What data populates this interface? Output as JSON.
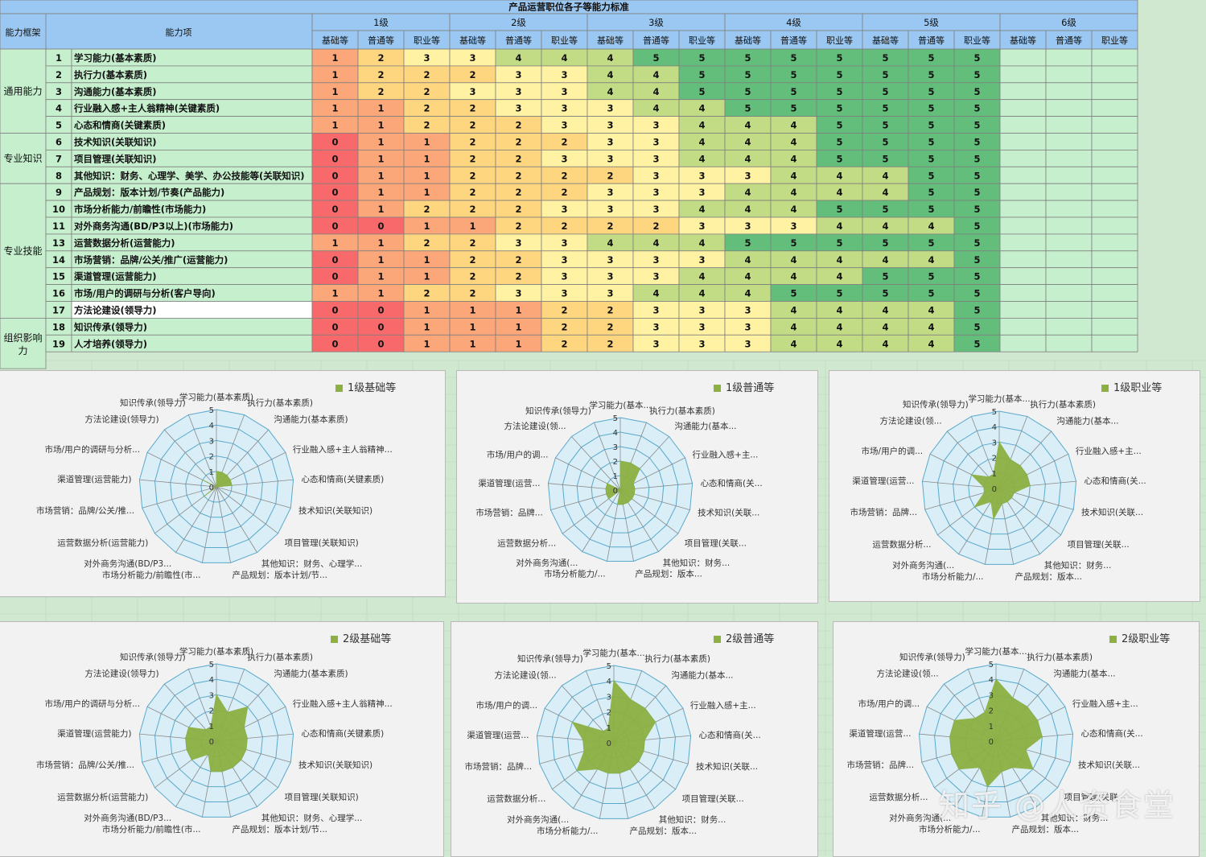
{
  "table": {
    "title": "产品运营职位各子等能力标准",
    "header_framework": "能力框架",
    "header_item": "能力项",
    "levels": [
      "1级",
      "2级",
      "3级",
      "4级",
      "5级",
      "6级"
    ],
    "sub_levels": [
      "基础等",
      "普通等",
      "职业等"
    ],
    "groups": [
      {
        "name": "通用能力",
        "rows": 5
      },
      {
        "name": "专业知识",
        "rows": 3
      },
      {
        "name": "专业技能",
        "rows": 8
      },
      {
        "name": "组织影响力",
        "rows": 3
      }
    ],
    "rows": [
      {
        "no": "1",
        "item": "学习能力(基本素质)",
        "values": [
          1,
          2,
          3,
          3,
          4,
          4,
          4,
          5,
          5,
          5,
          5,
          5,
          5,
          5,
          5
        ]
      },
      {
        "no": "2",
        "item": "执行力(基本素质)",
        "values": [
          1,
          2,
          2,
          2,
          3,
          3,
          4,
          4,
          5,
          5,
          5,
          5,
          5,
          5,
          5
        ]
      },
      {
        "no": "3",
        "item": "沟通能力(基本素质)",
        "values": [
          1,
          2,
          2,
          3,
          3,
          3,
          4,
          4,
          5,
          5,
          5,
          5,
          5,
          5,
          5
        ]
      },
      {
        "no": "4",
        "item": "行业融入感+主人翁精神(关键素质)",
        "values": [
          1,
          1,
          2,
          2,
          3,
          3,
          3,
          4,
          4,
          5,
          5,
          5,
          5,
          5,
          5
        ]
      },
      {
        "no": "5",
        "item": "心态和情商(关键素质)",
        "values": [
          1,
          1,
          2,
          2,
          2,
          3,
          3,
          3,
          4,
          4,
          4,
          5,
          5,
          5,
          5
        ]
      },
      {
        "no": "6",
        "item": "技术知识(关联知识)",
        "values": [
          0,
          1,
          1,
          2,
          2,
          2,
          3,
          3,
          4,
          4,
          4,
          5,
          5,
          5,
          5
        ]
      },
      {
        "no": "7",
        "item": "项目管理(关联知识)",
        "values": [
          0,
          1,
          1,
          2,
          2,
          3,
          3,
          3,
          4,
          4,
          4,
          5,
          5,
          5,
          5
        ]
      },
      {
        "no": "8",
        "item": "其他知识：财务、心理学、美学、办公技能等(关联知识)",
        "values": [
          0,
          1,
          1,
          2,
          2,
          2,
          2,
          3,
          3,
          3,
          4,
          4,
          4,
          5,
          5
        ]
      },
      {
        "no": "9",
        "item": "产品规划：版本计划/节奏(产品能力)",
        "values": [
          0,
          1,
          1,
          2,
          2,
          2,
          3,
          3,
          3,
          4,
          4,
          4,
          4,
          5,
          5
        ]
      },
      {
        "no": "10",
        "item": "市场分析能力/前瞻性(市场能力)",
        "values": [
          0,
          1,
          2,
          2,
          2,
          3,
          3,
          3,
          4,
          4,
          4,
          5,
          5,
          5,
          5
        ]
      },
      {
        "no": "11",
        "item": "对外商务沟通(BD/P3以上)(市场能力)",
        "values": [
          0,
          0,
          1,
          1,
          2,
          2,
          2,
          2,
          3,
          3,
          3,
          4,
          4,
          4,
          5
        ]
      },
      {
        "no": "13",
        "item": "运营数据分析(运营能力)",
        "values": [
          1,
          1,
          2,
          2,
          3,
          3,
          4,
          4,
          4,
          5,
          5,
          5,
          5,
          5,
          5
        ]
      },
      {
        "no": "14",
        "item": "市场营销：品牌/公关/推广(运营能力)",
        "values": [
          0,
          1,
          1,
          2,
          2,
          3,
          3,
          3,
          3,
          4,
          4,
          4,
          4,
          4,
          5
        ]
      },
      {
        "no": "15",
        "item": "渠道管理(运营能力)",
        "values": [
          0,
          1,
          1,
          2,
          2,
          3,
          3,
          3,
          4,
          4,
          4,
          4,
          5,
          5,
          5
        ]
      },
      {
        "no": "16",
        "item": "市场/用户的调研与分析(客户导向)",
        "values": [
          1,
          1,
          2,
          2,
          3,
          3,
          3,
          4,
          4,
          4,
          5,
          5,
          5,
          5,
          5
        ]
      },
      {
        "no": "17",
        "item": "方法论建设(领导力)",
        "values": [
          0,
          0,
          1,
          1,
          1,
          2,
          2,
          3,
          3,
          3,
          4,
          4,
          4,
          4,
          5
        ]
      },
      {
        "no": "18",
        "item": "知识传承(领导力)",
        "values": [
          0,
          0,
          1,
          1,
          1,
          2,
          2,
          3,
          3,
          3,
          4,
          4,
          4,
          4,
          5
        ]
      },
      {
        "no": "19",
        "item": "人才培养(领导力)",
        "values": [
          0,
          0,
          1,
          1,
          1,
          2,
          2,
          3,
          3,
          3,
          4,
          4,
          4,
          4,
          5
        ]
      }
    ]
  },
  "colors": {
    "header_blue": "#9bc8f2",
    "row_green": "#c6efce",
    "page_green": "#cfe8cf",
    "heat": [
      "#f8696b",
      "#fba77a",
      "#fed680",
      "#fff2a3",
      "#c2dc85",
      "#63be7b"
    ],
    "radar_fill": "#8db043",
    "radar_plot_bg": "#d9eef7",
    "radar_grid": "#5aa9cc"
  },
  "radar_labels_full": [
    "学习能力(基本素质)",
    "执行力(基本素质)",
    "沟通能力(基本素质)",
    "行业融入感+主人翁精神...",
    "心态和情商(关键素质)",
    "技术知识(关联知识)",
    "项目管理(关联知识)",
    "其他知识：财务、心理学...",
    "产品规划：版本计划/节...",
    "市场分析能力/前瞻性(市...",
    "对外商务沟通(BD/P3...",
    "运营数据分析(运营能力)",
    "市场营销：品牌/公关/推...",
    "渠道管理(运营能力)",
    "市场/用户的调研与分析...",
    "方法论建设(领导力)",
    "知识传承(领导力)"
  ],
  "radar_labels_short": [
    "学习能力(基本...",
    "执行力(基本素质)",
    "沟通能力(基本...",
    "行业融入感+主...",
    "心态和情商(关...",
    "技术知识(关联...",
    "项目管理(关联...",
    "其他知识：财务...",
    "产品规划：版本...",
    "市场分析能力/...",
    "对外商务沟通(...",
    "运营数据分析...",
    "市场营销：品牌...",
    "渠道管理(运营...",
    "市场/用户的调...",
    "方法论建设(领...",
    "知识传承(领导力)"
  ],
  "radar_ticks": [
    "0",
    "1",
    "2",
    "3",
    "4",
    "5"
  ],
  "watermark": "知乎 @人资食堂",
  "chart_data": [
    {
      "type": "radar",
      "title": "",
      "series": [
        {
          "name": "1级基础等",
          "values": [
            1,
            1,
            1,
            1,
            1,
            0,
            0,
            0,
            0,
            0,
            0,
            1,
            0,
            0,
            1,
            0,
            0
          ]
        }
      ],
      "rlim": [
        0,
        5
      ]
    },
    {
      "type": "radar",
      "title": "",
      "series": [
        {
          "name": "1级普通等",
          "values": [
            2,
            2,
            2,
            1,
            1,
            1,
            1,
            1,
            1,
            1,
            0,
            1,
            1,
            1,
            1,
            0,
            0
          ]
        }
      ],
      "rlim": [
        0,
        5
      ]
    },
    {
      "type": "radar",
      "title": "",
      "series": [
        {
          "name": "1级职业等",
          "values": [
            3,
            2,
            2,
            2,
            2,
            1,
            1,
            1,
            1,
            2,
            1,
            2,
            1,
            1,
            2,
            1,
            1
          ]
        }
      ],
      "rlim": [
        0,
        5
      ]
    },
    {
      "type": "radar",
      "title": "",
      "series": [
        {
          "name": "2级基础等",
          "values": [
            3,
            2,
            3,
            2,
            2,
            2,
            2,
            2,
            2,
            2,
            1,
            2,
            2,
            2,
            2,
            1,
            1
          ]
        }
      ],
      "rlim": [
        0,
        5
      ]
    },
    {
      "type": "radar",
      "title": "",
      "series": [
        {
          "name": "2级普通等",
          "values": [
            4,
            3,
            3,
            3,
            2,
            2,
            2,
            2,
            2,
            2,
            2,
            3,
            2,
            2,
            3,
            1,
            1
          ]
        }
      ],
      "rlim": [
        0,
        5
      ]
    },
    {
      "type": "radar",
      "title": "",
      "series": [
        {
          "name": "2级职业等",
          "values": [
            4,
            3,
            3,
            3,
            3,
            2,
            3,
            2,
            2,
            3,
            2,
            3,
            3,
            3,
            3,
            2,
            2
          ]
        }
      ],
      "rlim": [
        0,
        5
      ]
    }
  ]
}
